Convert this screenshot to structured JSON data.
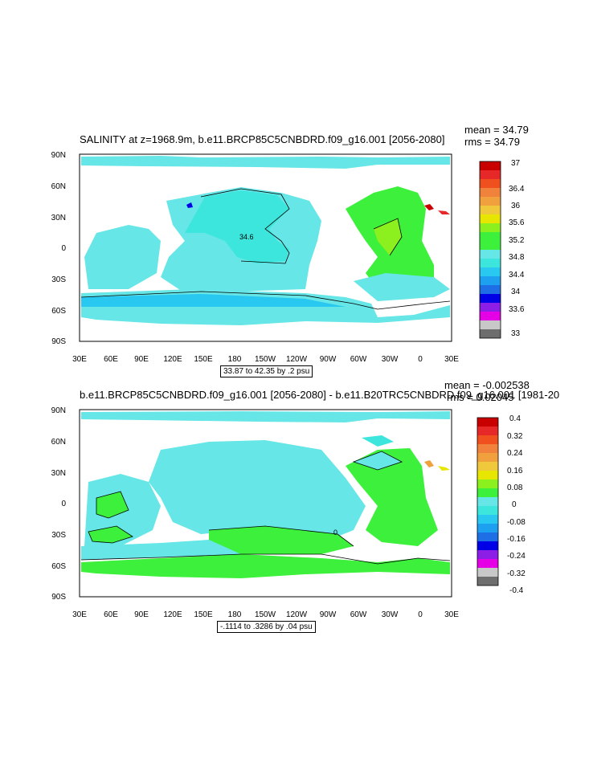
{
  "colors": {
    "ocean_fill": "#66e6e6",
    "land_fill": "#ffffff",
    "palette": [
      "#6e6e6e",
      "#c8c8c8",
      "#e600e6",
      "#8c1ee6",
      "#0000e6",
      "#1e6ee6",
      "#1ea0f0",
      "#28c8f0",
      "#3ce6dc",
      "#66e6e6",
      "#3cf03c",
      "#8cf01e",
      "#e6e600",
      "#f0c83c",
      "#f0a03c",
      "#f0823c",
      "#f0501e",
      "#e62828",
      "#c80000"
    ]
  },
  "panels": [
    {
      "title": "SALINITY at z=1968.9m, b.e11.BRCP85C5CNBDRD.f09_g16.001 [2056-2080]",
      "mean": "mean = 34.79",
      "rms": "rms = 34.79",
      "contour_info": "33.87 to 42.35 by .2 psu",
      "contour_label": "34.6",
      "colorbar_labels": [
        "37",
        "36.4",
        "36",
        "35.6",
        "35.2",
        "34.8",
        "34.4",
        "34",
        "33.6",
        "33"
      ]
    },
    {
      "title": "b.e11.BRCP85C5CNBDRD.f09_g16.001 [2056-2080] - b.e11.B20TRC5CNBDRD.f09_g16.001 [1981-20",
      "mean": "mean = -0.002538",
      "rms": "rms = 0.02045",
      "contour_info": "-.1114 to .3286 by .04 psu",
      "contour_label": "0",
      "colorbar_labels": [
        "0.4",
        "0.32",
        "0.24",
        "0.16",
        "0.08",
        "0",
        "-0.08",
        "-0.16",
        "-0.24",
        "-0.32",
        "-0.4"
      ]
    }
  ],
  "axes": {
    "lat_labels": [
      "90N",
      "60N",
      "30N",
      "0",
      "30S",
      "60S",
      "90S"
    ],
    "lon_labels": [
      "30E",
      "60E",
      "90E",
      "120E",
      "150E",
      "180",
      "150W",
      "120W",
      "90W",
      "60W",
      "30W",
      "0",
      "30E"
    ]
  }
}
